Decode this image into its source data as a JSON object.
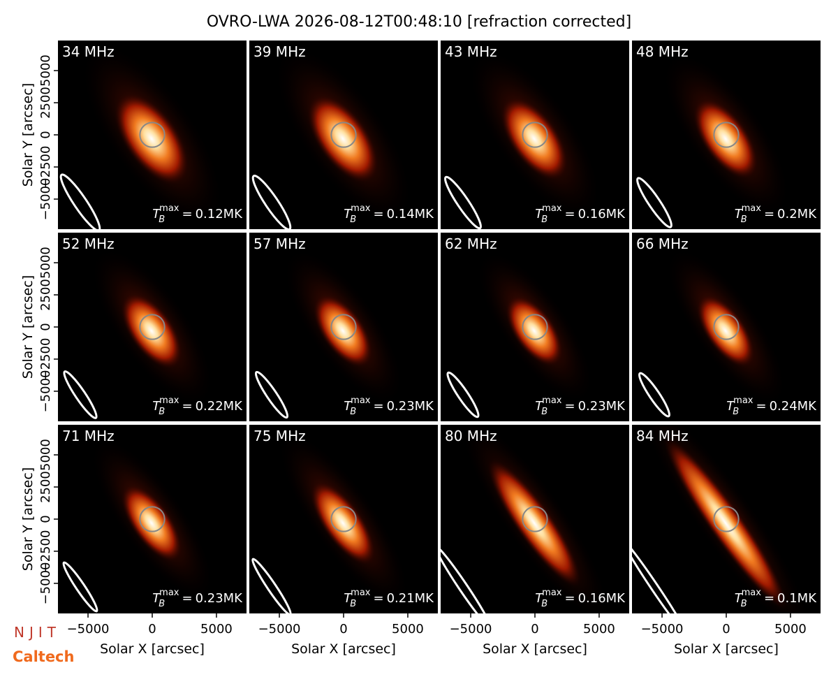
{
  "title": "OVRO-LWA 2026-08-12T00:48:10 [refraction corrected]",
  "logos": [
    "NJIT",
    "Caltech"
  ],
  "tb_label": {
    "symbol": "T",
    "sub": "B",
    "sup": "max",
    "eq": "="
  },
  "chart_data": [
    {
      "type": "image",
      "title": "34 MHz",
      "tb_max": 0.12,
      "tb_max_label": "0.12MK",
      "xlim": [
        -7340,
        7340
      ],
      "ylim": [
        -7340,
        7340
      ],
      "ylabel": "Solar Y [arcsec]",
      "yticks": [
        {
          "value": -5000,
          "label": "−5000"
        },
        {
          "value": -2500,
          "label": "−2500"
        },
        0,
        2500,
        5000
      ]
    },
    {
      "type": "image",
      "title": "39 MHz",
      "tb_max": 0.14,
      "tb_max_label": "0.14MK",
      "xlim": [
        -7340,
        7340
      ],
      "ylim": [
        -7340,
        7340
      ]
    },
    {
      "type": "image",
      "title": "43 MHz",
      "tb_max": 0.16,
      "tb_max_label": "0.16MK",
      "xlim": [
        -7340,
        7340
      ],
      "ylim": [
        -7340,
        7340
      ]
    },
    {
      "type": "image",
      "title": "48 MHz",
      "tb_max": 0.2,
      "tb_max_label": "0.2MK",
      "xlim": [
        -7340,
        7340
      ],
      "ylim": [
        -7340,
        7340
      ]
    },
    {
      "type": "image",
      "title": "52 MHz",
      "tb_max": 0.22,
      "tb_max_label": "0.22MK",
      "xlim": [
        -7340,
        7340
      ],
      "ylim": [
        -7340,
        7340
      ],
      "ylabel": "Solar Y [arcsec]",
      "yticks": [
        {
          "value": -5000,
          "label": "−5000"
        },
        {
          "value": -2500,
          "label": "−2500"
        },
        0,
        2500,
        5000
      ]
    },
    {
      "type": "image",
      "title": "57 MHz",
      "tb_max": 0.23,
      "tb_max_label": "0.23MK",
      "xlim": [
        -7340,
        7340
      ],
      "ylim": [
        -7340,
        7340
      ]
    },
    {
      "type": "image",
      "title": "62 MHz",
      "tb_max": 0.23,
      "tb_max_label": "0.23MK",
      "xlim": [
        -7340,
        7340
      ],
      "ylim": [
        -7340,
        7340
      ]
    },
    {
      "type": "image",
      "title": "66 MHz",
      "tb_max": 0.24,
      "tb_max_label": "0.24MK",
      "xlim": [
        -7340,
        7340
      ],
      "ylim": [
        -7340,
        7340
      ]
    },
    {
      "type": "image",
      "title": "71 MHz",
      "tb_max": 0.23,
      "tb_max_label": "0.23MK",
      "xlim": [
        -7340,
        7340
      ],
      "ylim": [
        -7340,
        7340
      ],
      "ylabel": "Solar Y [arcsec]",
      "yticks": [
        {
          "value": -5000,
          "label": "−5000"
        },
        {
          "value": -2500,
          "label": "−2500"
        },
        0,
        2500,
        5000
      ],
      "xlabel": "Solar X [arcsec]",
      "xticks": [
        {
          "value": -5000,
          "label": "−5000"
        },
        0,
        5000
      ]
    },
    {
      "type": "image",
      "title": "75 MHz",
      "tb_max": 0.21,
      "tb_max_label": "0.21MK",
      "xlim": [
        -7340,
        7340
      ],
      "ylim": [
        -7340,
        7340
      ],
      "xlabel": "Solar X [arcsec]",
      "xticks": [
        {
          "value": -5000,
          "label": "−5000"
        },
        0,
        5000
      ]
    },
    {
      "type": "image",
      "title": "80 MHz",
      "tb_max": 0.16,
      "tb_max_label": "0.16MK",
      "xlim": [
        -7340,
        7340
      ],
      "ylim": [
        -7340,
        7340
      ],
      "xlabel": "Solar X [arcsec]",
      "xticks": [
        {
          "value": -5000,
          "label": "−5000"
        },
        0,
        5000
      ]
    },
    {
      "type": "image",
      "title": "84 MHz",
      "tb_max": 0.1,
      "tb_max_label": "0.1MK",
      "xlim": [
        -7340,
        7340
      ],
      "ylim": [
        -7340,
        7340
      ],
      "xlabel": "Solar X [arcsec]",
      "xticks": [
        {
          "value": -5000,
          "label": "−5000"
        },
        0,
        5000
      ]
    }
  ]
}
